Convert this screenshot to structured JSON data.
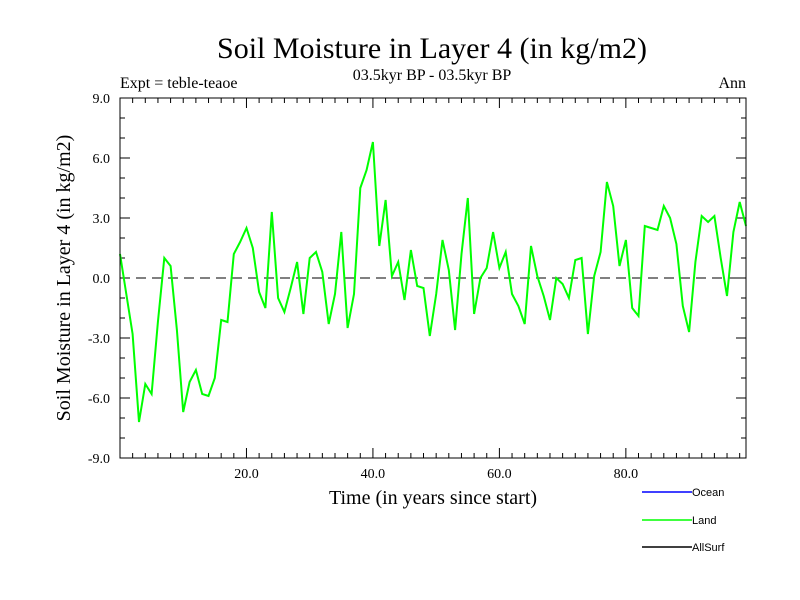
{
  "chart_data": {
    "type": "line",
    "title": "Soil Moisture in Layer 4 (in kg/m2)",
    "subtitle": "03.5kyr BP - 03.5kyr BP",
    "expt_label": "Expt = teble-teaoe",
    "season_label": "Ann",
    "xlabel": "Time (in years since start)",
    "ylabel": "Soil Moisture in Layer 4 (in kg/m2)",
    "xlim": [
      0,
      99
    ],
    "ylim": [
      -9,
      9
    ],
    "x_ticks": [
      20,
      40,
      60,
      80
    ],
    "x_tick_labels": [
      "20.0",
      "40.0",
      "60.0",
      "80.0"
    ],
    "y_ticks": [
      -9,
      -6,
      -3,
      0,
      3,
      6,
      9
    ],
    "y_tick_labels": [
      "-9.0",
      "-6.0",
      "-3.0",
      "0.0",
      "3.0",
      "6.0",
      "9.0"
    ],
    "zero_line": "dashed",
    "legend": [
      {
        "name": "Ocean",
        "color": "#0000ff"
      },
      {
        "name": "Land",
        "color": "#00ff00"
      },
      {
        "name": "AllSurf",
        "color": "#000000"
      }
    ],
    "series": [
      {
        "name": "Land",
        "color": "#00ff00",
        "x": [
          0,
          1,
          2,
          3,
          4,
          5,
          6,
          7,
          8,
          9,
          10,
          11,
          12,
          13,
          14,
          15,
          16,
          17,
          18,
          19,
          20,
          21,
          22,
          23,
          24,
          25,
          26,
          27,
          28,
          29,
          30,
          31,
          32,
          33,
          34,
          35,
          36,
          37,
          38,
          39,
          40,
          41,
          42,
          43,
          44,
          45,
          46,
          47,
          48,
          49,
          50,
          51,
          52,
          53,
          54,
          55,
          56,
          57,
          58,
          59,
          60,
          61,
          62,
          63,
          64,
          65,
          66,
          67,
          68,
          69,
          70,
          71,
          72,
          73,
          74,
          75,
          76,
          77,
          78,
          79,
          80,
          81,
          82,
          83,
          84,
          85,
          86,
          87,
          88,
          89,
          90,
          91,
          92,
          93,
          94,
          95,
          96,
          97,
          98,
          99
        ],
        "values": [
          1.2,
          -0.8,
          -2.8,
          -7.2,
          -5.3,
          -5.8,
          -2.2,
          1.0,
          0.6,
          -2.6,
          -6.7,
          -5.2,
          -4.6,
          -5.8,
          -5.9,
          -5.0,
          -2.1,
          -2.2,
          1.2,
          1.8,
          2.5,
          1.5,
          -0.7,
          -1.5,
          3.3,
          -1.0,
          -1.7,
          -0.5,
          0.8,
          -1.8,
          1.0,
          1.3,
          0.3,
          -2.3,
          -0.8,
          2.3,
          -2.5,
          -0.8,
          4.5,
          5.4,
          6.8,
          1.6,
          3.9,
          0.1,
          0.8,
          -1.1,
          1.4,
          -0.4,
          -0.5,
          -2.9,
          -0.8,
          1.9,
          0.4,
          -2.6,
          1.2,
          4.0,
          -1.8,
          0.0,
          0.5,
          2.3,
          0.5,
          1.3,
          -0.8,
          -1.4,
          -2.3,
          1.6,
          0.1,
          -0.9,
          -2.1,
          0.0,
          -0.3,
          -1.0,
          0.9,
          1.0,
          -2.8,
          0.1,
          1.3,
          4.8,
          3.6,
          0.6,
          1.9,
          -1.5,
          -1.9,
          2.6,
          2.5,
          2.4,
          3.6,
          3.0,
          1.7,
          -1.4,
          -2.7,
          0.8,
          3.1,
          2.8,
          3.1,
          1.0,
          -0.9,
          2.3,
          3.8,
          2.6
        ]
      }
    ]
  }
}
